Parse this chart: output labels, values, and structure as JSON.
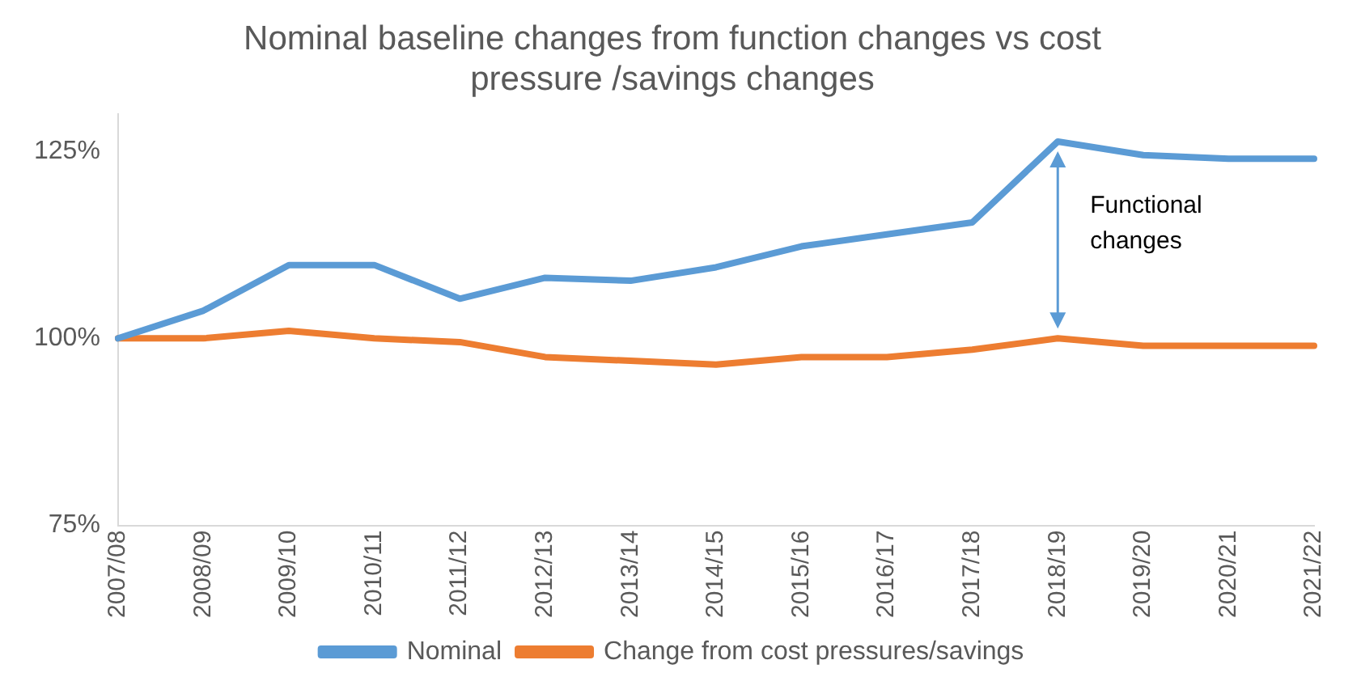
{
  "chart_data": {
    "type": "line",
    "title": "Nominal baseline changes from function changes vs cost pressure /savings changes",
    "categories": [
      "2007/08",
      "2008/09",
      "2009/10",
      "2010/11",
      "2011/12",
      "2012/13",
      "2013/14",
      "2014/15",
      "2015/16",
      "2016/17",
      "2017/18",
      "2018/19",
      "2019/20",
      "2020/21",
      "2021/22"
    ],
    "series": [
      {
        "name": "Nominal",
        "color": "#5b9bd5",
        "values": [
          100,
          103.7,
          109.8,
          109.8,
          105.3,
          108.1,
          107.7,
          109.5,
          112.3,
          113.9,
          115.5,
          126.3,
          124.5,
          124,
          124
        ]
      },
      {
        "name": "Change from cost pressures/savings",
        "color": "#ed7d31",
        "values": [
          100,
          100,
          101,
          100,
          99.5,
          97.5,
          97,
          96.5,
          97.5,
          97.5,
          98.5,
          100,
          99,
          99,
          99
        ]
      }
    ],
    "ylim": [
      75,
      130
    ],
    "yticks": [
      {
        "value": 75,
        "label": "75%"
      },
      {
        "value": 100,
        "label": "100%"
      },
      {
        "value": 125,
        "label": "125%"
      }
    ],
    "annotations": [
      "Functional changes"
    ],
    "grid": false,
    "legend": "bottom",
    "marker": "none",
    "line_style": "solid"
  }
}
